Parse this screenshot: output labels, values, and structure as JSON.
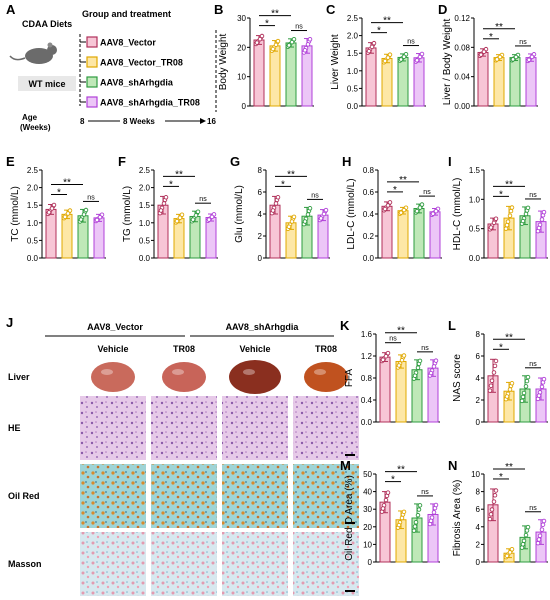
{
  "colors": {
    "vector": "#b0305a",
    "vector_fill": "#f7c6d6",
    "tr08": "#e0a800",
    "tr08_fill": "#fde7a6",
    "sh": "#2e9b3f",
    "sh_fill": "#bfe8b8",
    "sh_tr08": "#b040d8",
    "sh_tr08_fill": "#ecc6f7"
  },
  "panel_a": {
    "letter": "A",
    "diet": "CDAA Diets",
    "mouse_label": "WT mice",
    "header": "Group and treatment",
    "groups": [
      "AAV8_Vector",
      "AAV8_Vector_TR08",
      "AAV8_shArhgdia",
      "AAV8_shArhgdia_TR08"
    ],
    "age_label": "Age\n(Weeks)",
    "timeline_start": "8",
    "timeline_mid": "8 Weeks",
    "timeline_end": "16"
  },
  "panel_j": {
    "letter": "J",
    "group1": "AAV8_Vector",
    "group2": "AAV8_shArhgdia",
    "col_labels": [
      "Vehicle",
      "TR08",
      "Vehicle",
      "TR08"
    ],
    "row_labels": [
      "Liver",
      "HE",
      "Oil Red",
      "Masson"
    ]
  },
  "chart_data": [
    {
      "id": "B",
      "letter": "B",
      "type": "bar",
      "ylabel": "Body Weight",
      "ylim": [
        0,
        30
      ],
      "ticks": [
        "0",
        "10",
        "20",
        "30"
      ],
      "values": [
        22.5,
        20.5,
        21.5,
        20.5
      ],
      "errors": [
        1.5,
        1.8,
        1.4,
        2.5
      ],
      "comparisons": [
        {
          "from": 0,
          "to": 1,
          "label": "*"
        },
        {
          "from": 0,
          "to": 2,
          "label": "**"
        },
        {
          "from": 2,
          "to": 3,
          "label": "ns"
        }
      ]
    },
    {
      "id": "C",
      "letter": "C",
      "type": "bar",
      "ylabel": "Liver Weight",
      "ylim": [
        0,
        2.5
      ],
      "ticks": [
        "0.0",
        "0.5",
        "1.0",
        "1.5",
        "2.0",
        "2.5"
      ],
      "values": [
        1.65,
        1.35,
        1.38,
        1.37
      ],
      "errors": [
        0.15,
        0.12,
        0.1,
        0.12
      ],
      "comparisons": [
        {
          "from": 0,
          "to": 1,
          "label": "*"
        },
        {
          "from": 0,
          "to": 2,
          "label": "**"
        },
        {
          "from": 2,
          "to": 3,
          "label": "ns"
        }
      ]
    },
    {
      "id": "D",
      "letter": "D",
      "type": "bar",
      "ylabel": "Liver / Body Weight",
      "ylim": [
        0,
        0.12
      ],
      "ticks": [
        "0.00",
        "0.04",
        "0.08",
        "0.12"
      ],
      "values": [
        0.073,
        0.066,
        0.066,
        0.066
      ],
      "errors": [
        0.005,
        0.004,
        0.004,
        0.005
      ],
      "comparisons": [
        {
          "from": 0,
          "to": 1,
          "label": "*"
        },
        {
          "from": 0,
          "to": 2,
          "label": "**"
        },
        {
          "from": 2,
          "to": 3,
          "label": "ns"
        }
      ]
    },
    {
      "id": "E",
      "letter": "E",
      "type": "bar",
      "ylabel": "TC (mmol/L)",
      "ylim": [
        0,
        2.5
      ],
      "ticks": [
        "0.0",
        "0.5",
        "1.0",
        "1.5",
        "2.0",
        "2.5"
      ],
      "values": [
        1.38,
        1.24,
        1.2,
        1.14
      ],
      "errors": [
        0.14,
        0.12,
        0.18,
        0.1
      ],
      "comparisons": [
        {
          "from": 0,
          "to": 1,
          "label": "*"
        },
        {
          "from": 0,
          "to": 2,
          "label": "**"
        },
        {
          "from": 2,
          "to": 3,
          "label": "ns"
        }
      ]
    },
    {
      "id": "F",
      "letter": "F",
      "type": "bar",
      "ylabel": "TG (mmol/L)",
      "ylim": [
        0,
        2.5
      ],
      "ticks": [
        "0.0",
        "0.5",
        "1.0",
        "1.5",
        "2.0",
        "2.5"
      ],
      "values": [
        1.5,
        1.12,
        1.18,
        1.15
      ],
      "errors": [
        0.25,
        0.12,
        0.15,
        0.1
      ],
      "comparisons": [
        {
          "from": 0,
          "to": 1,
          "label": "*"
        },
        {
          "from": 0,
          "to": 2,
          "label": "**"
        },
        {
          "from": 2,
          "to": 3,
          "label": "ns"
        }
      ]
    },
    {
      "id": "G",
      "letter": "G",
      "type": "bar",
      "ylabel": "Glu (mmol/L)",
      "ylim": [
        0,
        8
      ],
      "ticks": [
        "0",
        "2",
        "4",
        "6",
        "8"
      ],
      "values": [
        4.8,
        3.2,
        3.8,
        3.9
      ],
      "errors": [
        0.8,
        0.6,
        0.8,
        0.5
      ],
      "comparisons": [
        {
          "from": 0,
          "to": 1,
          "label": "*"
        },
        {
          "from": 0,
          "to": 2,
          "label": "**"
        },
        {
          "from": 2,
          "to": 3,
          "label": "ns"
        }
      ]
    },
    {
      "id": "H",
      "letter": "H",
      "type": "bar",
      "ylabel": "LDL-C (mmol/L)",
      "ylim": [
        0,
        0.8
      ],
      "ticks": [
        "0.0",
        "0.2",
        "0.4",
        "0.6",
        "0.8"
      ],
      "values": [
        0.47,
        0.43,
        0.45,
        0.42
      ],
      "errors": [
        0.04,
        0.03,
        0.04,
        0.03
      ],
      "comparisons": [
        {
          "from": 0,
          "to": 1,
          "label": "*"
        },
        {
          "from": 0,
          "to": 2,
          "label": "**"
        },
        {
          "from": 2,
          "to": 3,
          "label": "ns"
        }
      ]
    },
    {
      "id": "I",
      "letter": "I",
      "type": "bar",
      "ylabel": "HDL-C (mmol/L)",
      "ylim": [
        0,
        1.5
      ],
      "ticks": [
        "0.0",
        "0.5",
        "1.0",
        "1.5"
      ],
      "values": [
        0.58,
        0.68,
        0.72,
        0.62
      ],
      "errors": [
        0.1,
        0.2,
        0.15,
        0.18
      ],
      "comparisons": [
        {
          "from": 0,
          "to": 1,
          "label": "*"
        },
        {
          "from": 0,
          "to": 2,
          "label": "**"
        },
        {
          "from": 2,
          "to": 3,
          "label": "ns"
        }
      ]
    },
    {
      "id": "K",
      "letter": "K",
      "type": "bar",
      "ylabel": "FFA",
      "ylim": [
        0,
        1.6
      ],
      "ticks": [
        "0.0",
        "0.4",
        "0.8",
        "1.2",
        "1.6"
      ],
      "values": [
        1.18,
        1.1,
        0.95,
        0.98
      ],
      "errors": [
        0.08,
        0.12,
        0.18,
        0.15
      ],
      "comparisons": [
        {
          "from": 0,
          "to": 1,
          "label": "ns"
        },
        {
          "from": 0,
          "to": 2,
          "label": "**"
        },
        {
          "from": 2,
          "to": 3,
          "label": "ns"
        }
      ]
    },
    {
      "id": "L",
      "letter": "L",
      "type": "bar",
      "ylabel": "NAS score",
      "ylim": [
        0,
        8
      ],
      "ticks": [
        "0",
        "2",
        "4",
        "6",
        "8"
      ],
      "values": [
        4.2,
        2.8,
        3.0,
        3.0
      ],
      "errors": [
        1.5,
        0.8,
        1.2,
        1.0
      ],
      "comparisons": [
        {
          "from": 0,
          "to": 1,
          "label": "*"
        },
        {
          "from": 0,
          "to": 2,
          "label": "**"
        },
        {
          "from": 2,
          "to": 3,
          "label": "ns"
        }
      ]
    },
    {
      "id": "M",
      "letter": "M",
      "type": "bar",
      "ylabel": "Oil Red O Area (%)",
      "ylim": [
        0,
        50
      ],
      "ticks": [
        "0",
        "10",
        "20",
        "30",
        "40",
        "50"
      ],
      "values": [
        34,
        24,
        25,
        27
      ],
      "errors": [
        6,
        5,
        8,
        6
      ],
      "comparisons": [
        {
          "from": 0,
          "to": 1,
          "label": "*"
        },
        {
          "from": 0,
          "to": 2,
          "label": "**"
        },
        {
          "from": 2,
          "to": 3,
          "label": "ns"
        }
      ]
    },
    {
      "id": "N",
      "letter": "N",
      "type": "bar",
      "ylabel": "Fibrosis Area (%)",
      "ylim": [
        0,
        10
      ],
      "ticks": [
        "0",
        "2",
        "4",
        "6",
        "8",
        "10"
      ],
      "values": [
        6.5,
        1.0,
        2.8,
        3.4
      ],
      "errors": [
        1.8,
        0.5,
        1.3,
        1.4
      ],
      "comparisons": [
        {
          "from": 0,
          "to": 1,
          "label": "*"
        },
        {
          "from": 0,
          "to": 2,
          "label": "**"
        },
        {
          "from": 2,
          "to": 3,
          "label": "ns"
        }
      ]
    }
  ]
}
